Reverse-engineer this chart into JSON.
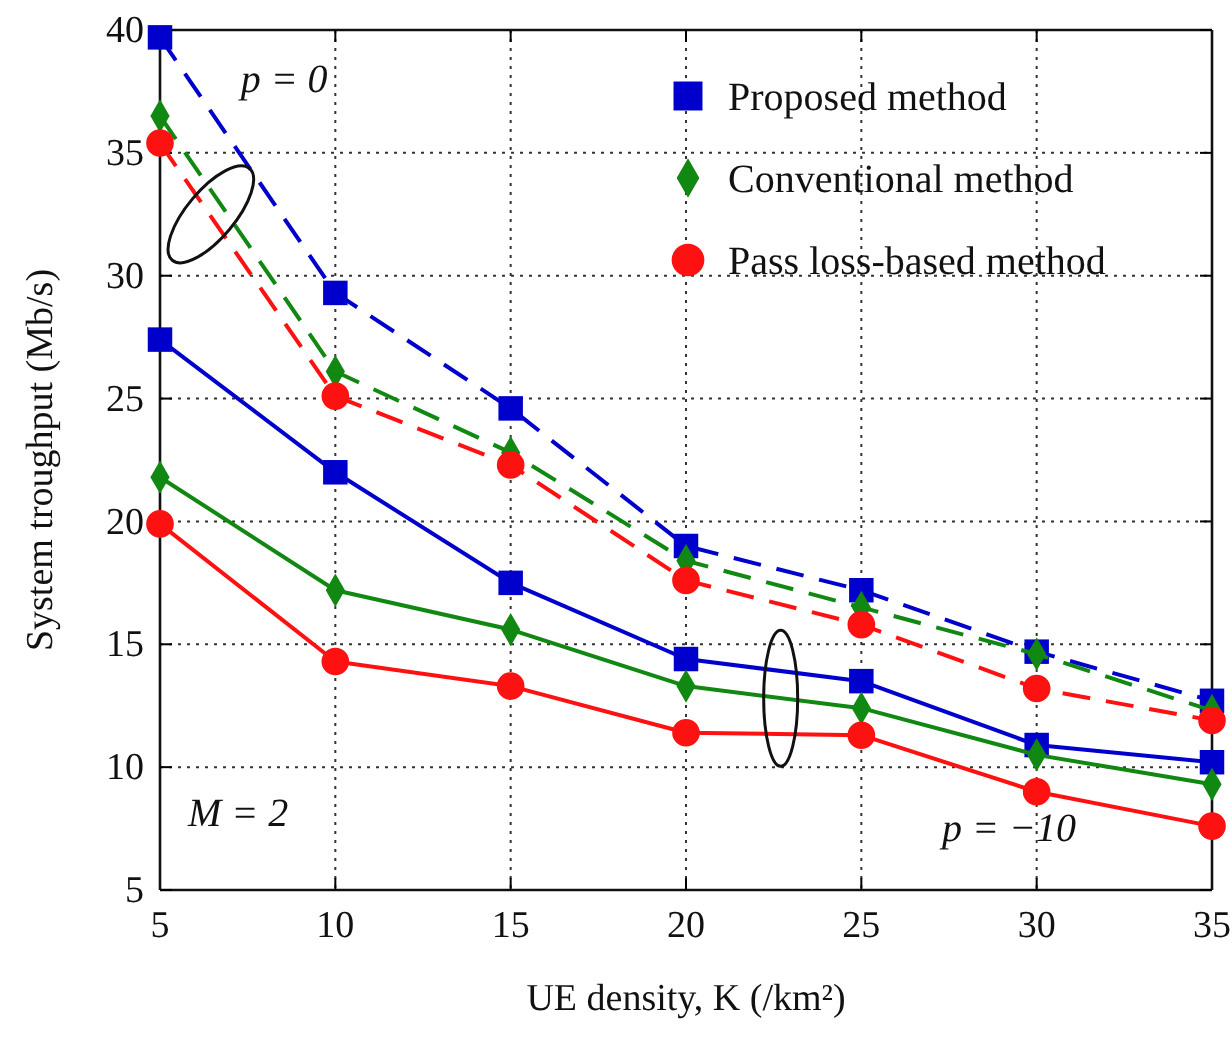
{
  "chart_data": {
    "type": "line",
    "xlabel": "UE density, K (/km²)",
    "ylabel": "System troughput (Mb/s)",
    "x": [
      5,
      10,
      15,
      20,
      25,
      30,
      35
    ],
    "xlim": [
      5,
      35
    ],
    "xticks": [
      5,
      10,
      15,
      20,
      25,
      30,
      35
    ],
    "ylim": [
      5,
      40
    ],
    "yticks": [
      5,
      10,
      15,
      20,
      25,
      30,
      35,
      40
    ],
    "grid": true,
    "legend": "top right",
    "annotations": [
      "p = 0",
      "p = −10",
      "M = 2"
    ],
    "series": [
      {
        "name": "Proposed method",
        "color": "#0000cc",
        "marker": "square",
        "line_style": "dashed",
        "values": [
          39.7,
          29.3,
          24.6,
          19.0,
          17.2,
          14.7,
          12.7
        ]
      },
      {
        "name": "Conventional method",
        "color": "#118811",
        "marker": "diamond",
        "line_style": "dashed",
        "values": [
          36.5,
          26.1,
          22.8,
          18.4,
          16.5,
          14.6,
          12.3
        ]
      },
      {
        "name": "Pass loss-based method",
        "color": "#ff1111",
        "marker": "circle",
        "line_style": "dashed",
        "values": [
          35.4,
          25.1,
          22.3,
          17.6,
          15.8,
          13.2,
          11.9
        ]
      },
      {
        "color": "#0000cc",
        "marker": "square",
        "line_style": "solid",
        "values": [
          27.4,
          22.0,
          17.5,
          14.4,
          13.5,
          10.9,
          10.2
        ]
      },
      {
        "color": "#118811",
        "marker": "diamond",
        "line_style": "solid",
        "values": [
          21.8,
          17.2,
          15.6,
          13.3,
          12.4,
          10.5,
          9.3
        ]
      },
      {
        "color": "#ff1111",
        "marker": "circle",
        "line_style": "solid",
        "values": [
          19.9,
          14.3,
          13.3,
          11.4,
          11.3,
          9.0,
          7.6
        ]
      }
    ]
  }
}
